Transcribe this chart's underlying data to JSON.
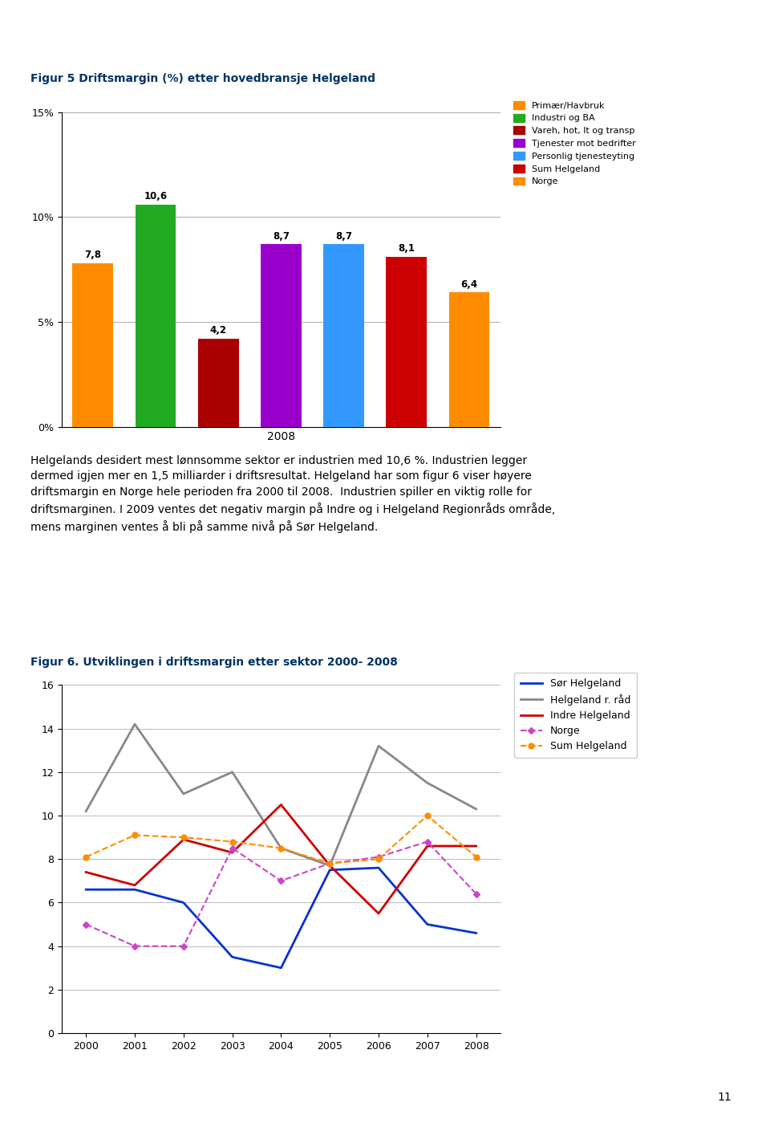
{
  "fig5_title": "Figur 5 Driftsmargin (%) etter hovedbransje Helgeland",
  "fig5_values": [
    7.8,
    10.6,
    4.2,
    8.7,
    8.7,
    8.1,
    6.4
  ],
  "fig5_bar_colors": [
    "#FF8C00",
    "#22AA22",
    "#AA0000",
    "#9900CC",
    "#3399FF",
    "#CC0000",
    "#FF8C00"
  ],
  "fig5_legend_labels": [
    "Primær/Havbruk",
    "Industri og BA",
    "Vareh, hot, lt og transp",
    "Tjenester mot bedrifter",
    "Personlig tjenesteyting",
    "Sum Helgeland",
    "Norge"
  ],
  "fig5_legend_colors": [
    "#FF8C00",
    "#22AA22",
    "#AA0000",
    "#9900CC",
    "#3399FF",
    "#CC0000",
    "#FF8C00"
  ],
  "fig5_ylim": [
    0,
    15
  ],
  "fig5_yticks": [
    0,
    5,
    10,
    15
  ],
  "fig5_ytick_labels": [
    "0%",
    "5%",
    "10%",
    "15%"
  ],
  "fig5_xlabel": "2008",
  "body_text_lines": [
    "Helgelands desidert mest lønnsomme sektor er industrien med 10,6 %. Industrien legger",
    "dermed igjen mer en 1,5 milliarder i driftsresultat. Helgeland har som figur 6 viser høyere",
    "driftsmargin en Norge hele perioden fra 2000 til 2008.  Industrien spiller en viktig rolle for",
    "driftsmarginen. I 2009 ventes det negativ margin på Indre og i Helgeland Regionråds område,",
    "mens marginen ventes å bli på samme nivå på Sør Helgeland."
  ],
  "fig6_title": "Figur 6. Utviklingen i driftsmargin etter sektor 2000- 2008",
  "fig6_years": [
    2000,
    2001,
    2002,
    2003,
    2004,
    2005,
    2006,
    2007,
    2008
  ],
  "fig6_sor_helgeland": [
    6.6,
    6.6,
    6.0,
    3.5,
    3.0,
    7.5,
    7.6,
    5.0,
    4.6
  ],
  "fig6_helgeland_rad": [
    10.2,
    14.2,
    11.0,
    12.0,
    8.5,
    7.7,
    13.2,
    11.5,
    10.3
  ],
  "fig6_indre_helgeland": [
    7.4,
    6.8,
    8.9,
    8.3,
    10.5,
    7.7,
    5.5,
    8.6,
    8.6
  ],
  "fig6_norge": [
    5.0,
    4.0,
    4.0,
    8.5,
    7.0,
    7.8,
    8.1,
    8.8,
    6.4
  ],
  "fig6_sum_helgeland": [
    8.1,
    9.1,
    9.0,
    8.8,
    8.5,
    7.8,
    8.0,
    10.0,
    8.1
  ],
  "fig6_ylim": [
    0,
    16
  ],
  "fig6_yticks": [
    0,
    2,
    4,
    6,
    8,
    10,
    12,
    14,
    16
  ],
  "fig6_color_sor": "#0033CC",
  "fig6_color_helgeland_rad": "#888888",
  "fig6_color_indre": "#CC0000",
  "fig6_color_norge": "#CC44CC",
  "fig6_color_sum": "#FF8C00",
  "page_number": "11"
}
